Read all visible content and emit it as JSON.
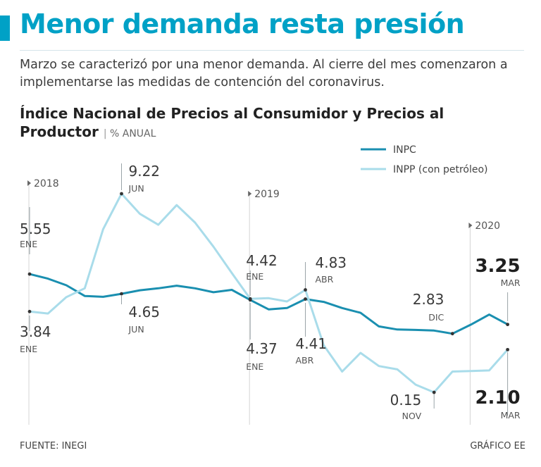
{
  "header": {
    "title": "Menor demanda resta presión",
    "subtitle": "Marzo se caracterizó por una menor demanda. Al cierre del mes comenzaron a implementarse las medidas de contención del coronavirus."
  },
  "footer": {
    "source": "FUENTE: INEGI",
    "credit": "GRÁFICO EE"
  },
  "colors": {
    "accent": "#00a1c6",
    "inpc": "#1a8fb0",
    "inpp": "#a9dcea"
  },
  "chart_data": {
    "type": "line",
    "title": "Índice Nacional de Precios al Consumidor y Precios al Productor",
    "unit_separator": "|",
    "unit": "% ANUAL",
    "legend_position": "top-right",
    "xlabel": "",
    "ylabel": "% anual",
    "year_markers": [
      {
        "label": "2018",
        "index": 0
      },
      {
        "label": "2019",
        "index": 12
      },
      {
        "label": "2020",
        "index": 24
      }
    ],
    "series": [
      {
        "name": "INPC",
        "color": "#1a8fb0",
        "values": [
          5.55,
          5.34,
          5.04,
          4.55,
          4.51,
          4.65,
          4.81,
          4.9,
          5.02,
          4.9,
          4.72,
          4.83,
          4.37,
          3.94,
          4.0,
          4.41,
          4.28,
          4.0,
          3.78,
          3.16,
          3.02,
          3.0,
          2.97,
          2.83,
          3.24,
          3.7,
          3.25
        ]
      },
      {
        "name": "INPP (con petróleo)",
        "color": "#a9dcea",
        "values": [
          3.84,
          3.75,
          4.5,
          4.9,
          7.6,
          9.22,
          8.3,
          7.8,
          8.7,
          7.9,
          6.8,
          5.6,
          4.42,
          4.45,
          4.3,
          4.83,
          2.3,
          1.1,
          1.95,
          1.35,
          1.2,
          0.5,
          0.15,
          1.1,
          1.12,
          1.15,
          2.1
        ]
      }
    ],
    "annotations": [
      {
        "series": "INPC",
        "index": 0,
        "value": "5.55",
        "label": "ENE"
      },
      {
        "series": "INPC",
        "index": 5,
        "value": "4.65",
        "label": "JUN"
      },
      {
        "series": "INPC",
        "index": 12,
        "value": "4.37",
        "label": "ENE"
      },
      {
        "series": "INPC",
        "index": 15,
        "value": "4.41",
        "label": "ABR"
      },
      {
        "series": "INPC",
        "index": 23,
        "value": "2.83",
        "label": "DIC"
      },
      {
        "series": "INPC",
        "index": 26,
        "value": "3.25",
        "label": "MAR"
      },
      {
        "series": "INPP (con petróleo)",
        "index": 0,
        "value": "3.84",
        "label": "ENE"
      },
      {
        "series": "INPP (con petróleo)",
        "index": 5,
        "value": "9.22",
        "label": "JUN"
      },
      {
        "series": "INPP (con petróleo)",
        "index": 12,
        "value": "4.42",
        "label": "ENE"
      },
      {
        "series": "INPP (con petróleo)",
        "index": 15,
        "value": "4.83",
        "label": "ABR"
      },
      {
        "series": "INPP (con petróleo)",
        "index": 22,
        "value": "0.15",
        "label": "NOV"
      },
      {
        "series": "INPP (con petróleo)",
        "index": 26,
        "value": "2.10",
        "label": "MAR"
      }
    ]
  }
}
